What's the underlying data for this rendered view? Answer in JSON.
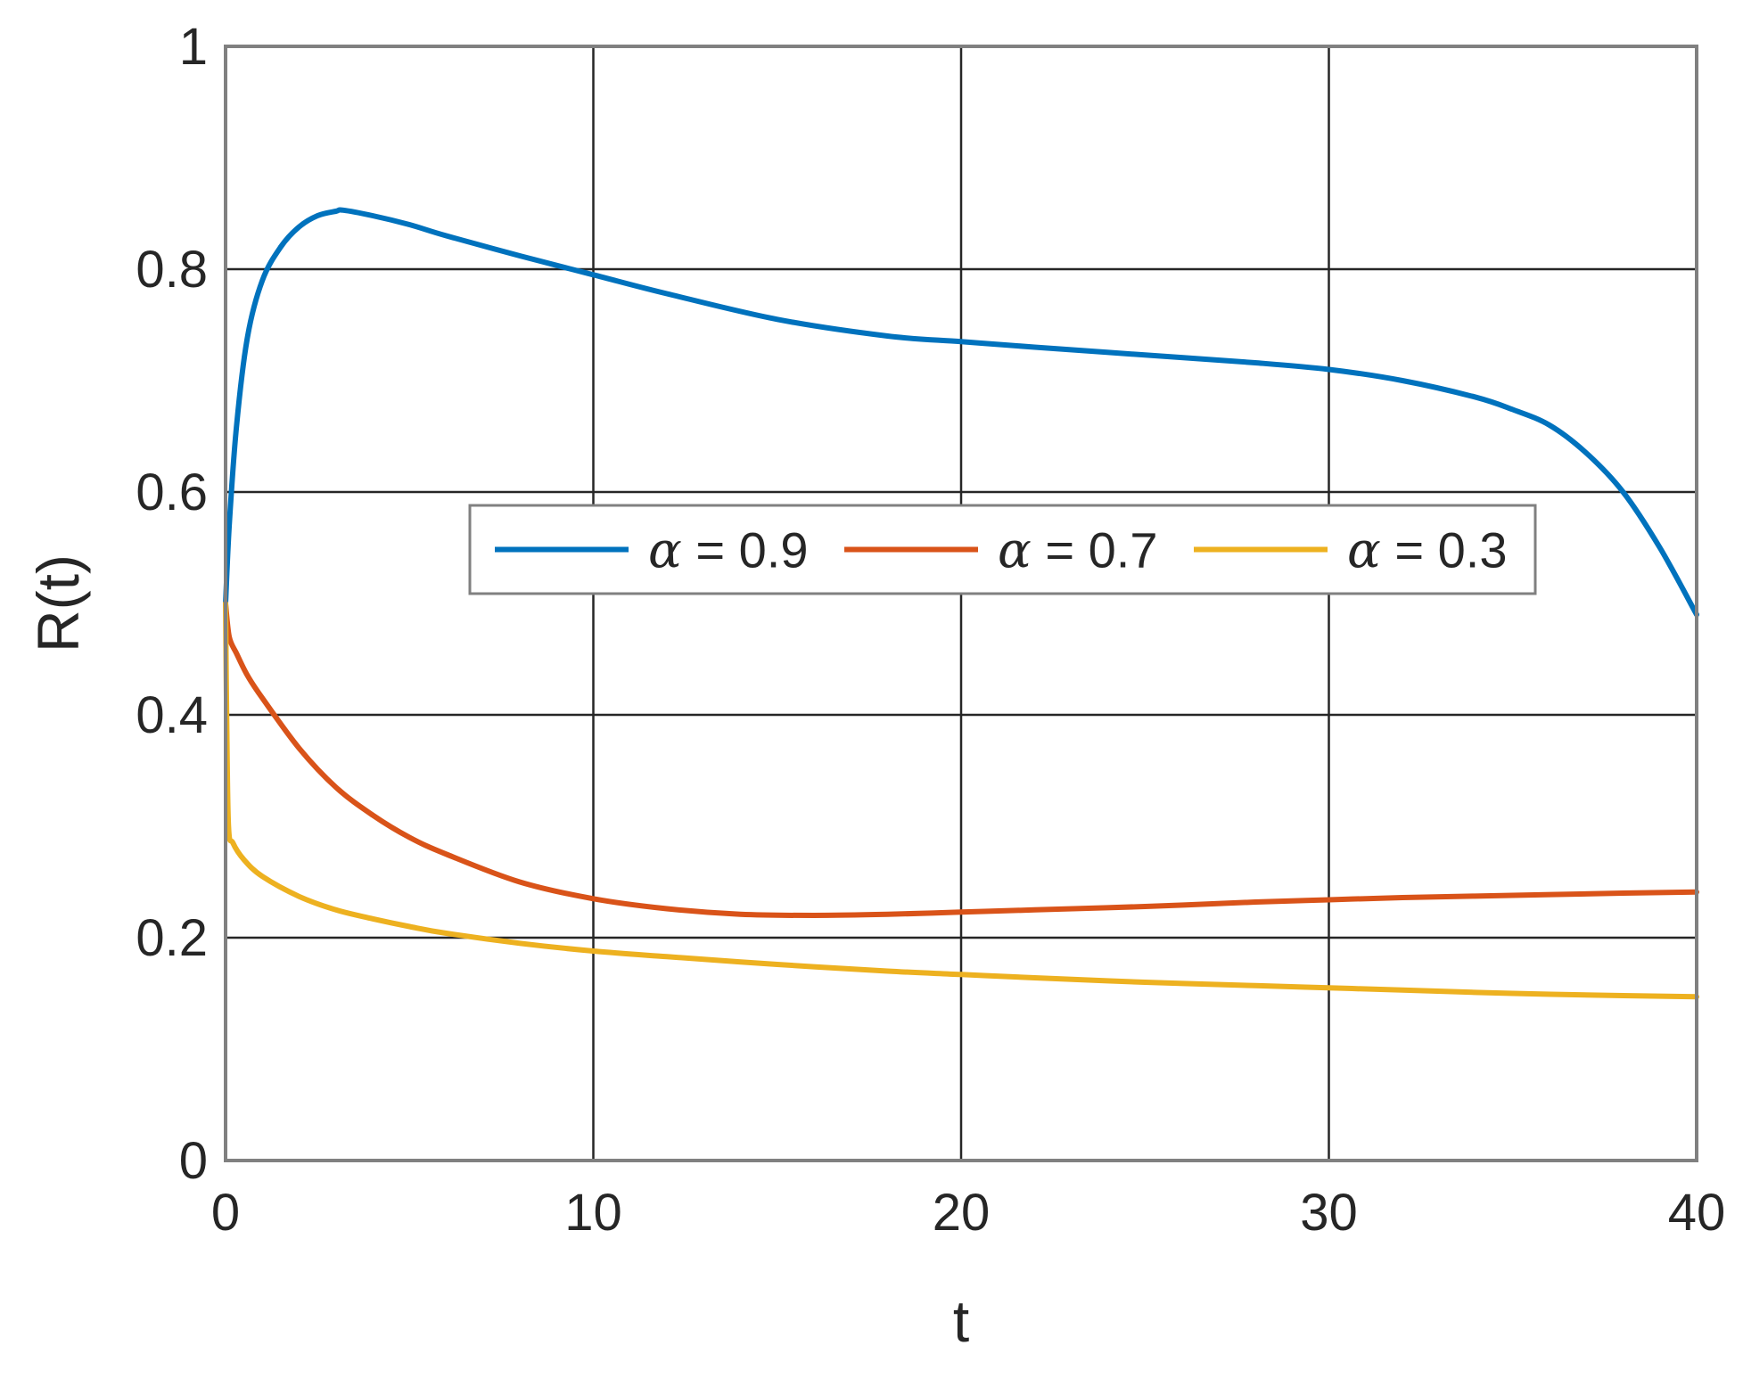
{
  "chart_data": {
    "type": "line",
    "title": "",
    "xlabel": "t",
    "ylabel": "R(t)",
    "xlim": [
      0,
      40
    ],
    "ylim": [
      0,
      1
    ],
    "xticks": [
      0,
      10,
      20,
      30,
      40
    ],
    "xtick_labels": [
      "0",
      "10",
      "20",
      "30",
      "40"
    ],
    "yticks": [
      0,
      0.2,
      0.4,
      0.6,
      0.8,
      1
    ],
    "ytick_labels": [
      "0",
      "0.2",
      "0.4",
      "0.6",
      "0.8",
      "1"
    ],
    "grid": true,
    "legend": {
      "placement": "center",
      "orientation": "horizontal"
    },
    "series": [
      {
        "name": "α = 0.9",
        "greek": "α",
        "rest": " = 0.9",
        "color": "#0072BD",
        "x": [
          0,
          0.1,
          0.3,
          0.6,
          1,
          1.5,
          2,
          2.5,
          3,
          3.2,
          4,
          5,
          6,
          8,
          10,
          12,
          15,
          18,
          20,
          22,
          25,
          28,
          30,
          32,
          34,
          35,
          36,
          37,
          38,
          39,
          40
        ],
        "y": [
          0.5,
          0.57,
          0.66,
          0.74,
          0.79,
          0.82,
          0.838,
          0.848,
          0.852,
          0.853,
          0.848,
          0.84,
          0.83,
          0.812,
          0.795,
          0.778,
          0.755,
          0.74,
          0.735,
          0.73,
          0.723,
          0.716,
          0.71,
          0.7,
          0.685,
          0.674,
          0.66,
          0.635,
          0.6,
          0.55,
          0.49
        ]
      },
      {
        "name": "α = 0.7",
        "greek": "α",
        "rest": " = 0.7",
        "color": "#D95319",
        "x": [
          0,
          0.1,
          0.3,
          0.6,
          1,
          2,
          3,
          4,
          5,
          6,
          8,
          10,
          12,
          14,
          16,
          18,
          20,
          22,
          25,
          28,
          30,
          32,
          35,
          38,
          40
        ],
        "y": [
          0.5,
          0.47,
          0.455,
          0.435,
          0.415,
          0.37,
          0.335,
          0.31,
          0.29,
          0.275,
          0.25,
          0.235,
          0.226,
          0.221,
          0.22,
          0.221,
          0.223,
          0.225,
          0.228,
          0.232,
          0.234,
          0.236,
          0.238,
          0.24,
          0.241
        ]
      },
      {
        "name": "α = 0.3",
        "greek": "α",
        "rest": " = 0.3",
        "color": "#EDB120",
        "x": [
          0,
          0.03,
          0.08,
          0.2,
          0.5,
          1,
          2,
          3,
          4,
          5,
          6,
          8,
          10,
          12,
          15,
          18,
          20,
          22,
          25,
          28,
          30,
          32,
          35,
          38,
          40
        ],
        "y": [
          0.5,
          0.4,
          0.3,
          0.285,
          0.27,
          0.255,
          0.237,
          0.225,
          0.217,
          0.21,
          0.204,
          0.195,
          0.188,
          0.183,
          0.176,
          0.17,
          0.167,
          0.164,
          0.16,
          0.157,
          0.155,
          0.153,
          0.15,
          0.148,
          0.147
        ]
      }
    ]
  }
}
